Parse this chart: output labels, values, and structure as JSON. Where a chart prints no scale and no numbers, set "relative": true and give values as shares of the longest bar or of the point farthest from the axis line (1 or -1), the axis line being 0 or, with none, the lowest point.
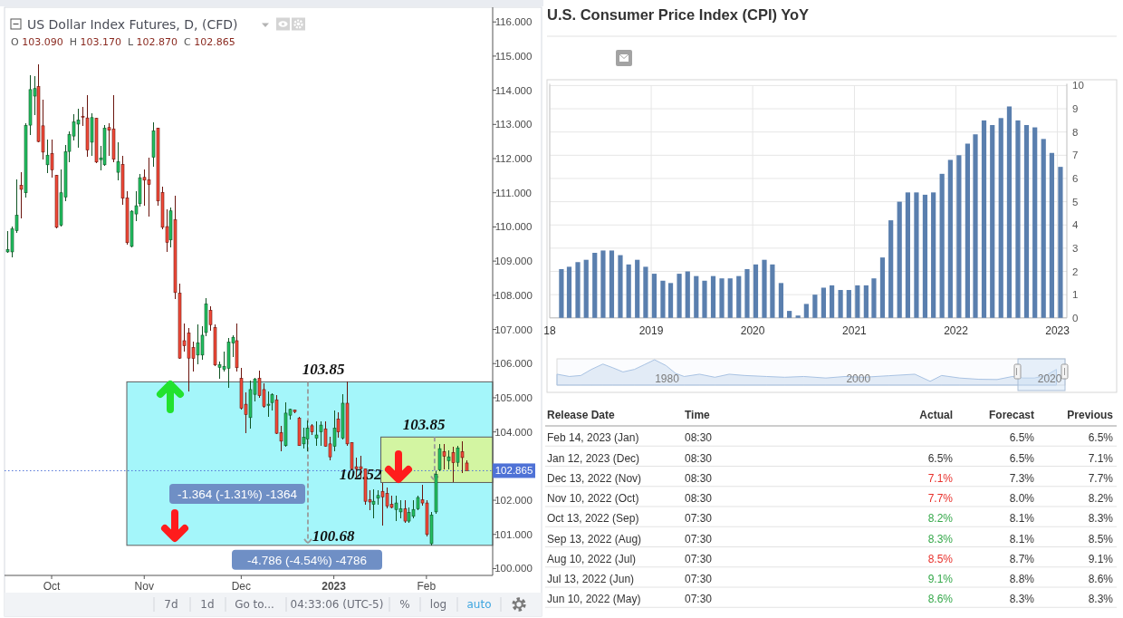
{
  "chart_data": [
    {
      "type": "candlestick",
      "title": "US Dollar Index Futures, D, (CFD)",
      "subtitle": "O 103.090 H 103.170 L 102.870 C 102.865",
      "categories": [
        null,
        null,
        null,
        null,
        null,
        null,
        null,
        null,
        null,
        null,
        "Oct",
        null,
        null,
        null,
        null,
        null,
        null,
        null,
        null,
        null,
        null,
        null,
        null,
        null,
        null,
        null,
        null,
        null,
        null,
        null,
        null,
        "Nov",
        null,
        null,
        null,
        null,
        null,
        null,
        null,
        null,
        null,
        null,
        null,
        null,
        null,
        null,
        null,
        null,
        null,
        null,
        null,
        null,
        null,
        "Dec",
        null,
        null,
        null,
        null,
        null,
        null,
        null,
        null,
        null,
        null,
        null,
        null,
        null,
        null,
        null,
        null,
        null,
        null,
        null,
        null,
        "2023",
        null,
        null,
        null,
        null,
        null,
        null,
        null,
        null,
        null,
        null,
        null,
        null,
        null,
        null,
        null,
        null,
        null,
        null,
        null,
        null,
        "Feb",
        null,
        null,
        null,
        null,
        null,
        null,
        null,
        null,
        null
      ],
      "ohlc": [
        [
          109.27,
          109.89,
          109.23,
          109.34
        ],
        [
          109.27,
          110.02,
          109.1,
          109.94
        ],
        [
          109.89,
          111.39,
          109.83,
          110.34
        ],
        [
          111.22,
          111.6,
          110.24,
          111.1
        ],
        [
          111.0,
          113.03,
          110.86,
          112.97
        ],
        [
          112.98,
          114.45,
          112.7,
          114.02
        ],
        [
          113.83,
          114.42,
          113.27,
          114.05
        ],
        [
          114.11,
          114.75,
          112.48,
          112.5
        ],
        [
          112.96,
          113.73,
          111.97,
          112.19
        ],
        [
          111.82,
          112.57,
          111.57,
          112.1
        ],
        [
          112.15,
          112.55,
          111.44,
          111.67
        ],
        [
          111.51,
          111.52,
          109.97,
          109.99
        ],
        [
          110.05,
          111.67,
          110.01,
          111.0
        ],
        [
          110.87,
          112.39,
          110.76,
          112.2
        ],
        [
          112.21,
          112.79,
          111.9,
          112.7
        ],
        [
          112.66,
          113.3,
          112.53,
          113.07
        ],
        [
          113.01,
          113.47,
          112.33,
          113.13
        ],
        [
          113.24,
          113.51,
          112.95,
          113.22
        ],
        [
          113.19,
          113.87,
          112.05,
          112.25
        ],
        [
          112.48,
          113.32,
          112.08,
          113.2
        ],
        [
          113.18,
          113.2,
          111.86,
          111.9
        ],
        [
          111.97,
          112.36,
          111.66,
          112.02
        ],
        [
          111.82,
          112.99,
          111.8,
          112.89
        ],
        [
          112.91,
          113.04,
          112.08,
          112.83
        ],
        [
          112.87,
          113.85,
          111.9,
          111.98
        ],
        [
          111.6,
          112.47,
          111.37,
          111.91
        ],
        [
          111.83,
          112.07,
          110.65,
          110.84
        ],
        [
          110.85,
          111.04,
          109.49,
          109.54
        ],
        [
          109.43,
          110.49,
          109.39,
          110.46
        ],
        [
          110.38,
          111.04,
          110.16,
          110.62
        ],
        [
          110.68,
          111.55,
          110.6,
          111.44
        ],
        [
          111.45,
          111.68,
          110.62,
          111.37
        ],
        [
          111.38,
          112.04,
          110.29,
          111.24
        ],
        [
          112.04,
          113.05,
          111.75,
          112.81
        ],
        [
          112.89,
          112.9,
          110.62,
          110.76
        ],
        [
          111.01,
          111.18,
          109.93,
          109.99
        ],
        [
          110.01,
          110.51,
          109.28,
          109.55
        ],
        [
          109.62,
          110.56,
          109.39,
          110.47
        ],
        [
          110.21,
          110.92,
          107.9,
          108.08
        ],
        [
          108.06,
          108.33,
          106.14,
          106.16
        ],
        [
          106.67,
          107.18,
          106.34,
          106.52
        ],
        [
          106.9,
          107.05,
          105.19,
          106.16
        ],
        [
          106.47,
          106.65,
          105.77,
          106.15
        ],
        [
          106.25,
          107.14,
          105.99,
          106.61
        ],
        [
          106.25,
          107.09,
          106.12,
          106.83
        ],
        [
          106.91,
          107.91,
          106.8,
          107.75
        ],
        [
          107.56,
          107.67,
          106.96,
          107.14
        ],
        [
          107.06,
          107.15,
          105.94,
          105.96
        ],
        [
          105.89,
          106.05,
          105.56,
          105.97
        ],
        [
          105.83,
          106.34,
          105.77,
          105.92
        ],
        [
          105.86,
          106.74,
          105.28,
          106.63
        ],
        [
          106.6,
          106.83,
          106.19,
          106.77
        ],
        [
          106.67,
          107.18,
          105.77,
          105.88
        ],
        [
          105.57,
          105.87,
          104.66,
          104.69
        ],
        [
          104.81,
          105.15,
          103.96,
          104.51
        ],
        [
          104.42,
          105.5,
          104.09,
          105.24
        ],
        [
          105.1,
          105.59,
          104.88,
          105.55
        ],
        [
          105.57,
          105.8,
          104.99,
          105.06
        ],
        [
          105.24,
          105.43,
          104.71,
          104.75
        ],
        [
          104.78,
          105.19,
          104.44,
          104.81
        ],
        [
          104.86,
          105.13,
          104.62,
          105.09
        ],
        [
          104.94,
          105.08,
          103.93,
          103.96
        ],
        [
          103.98,
          104.18,
          103.43,
          103.73
        ],
        [
          103.6,
          104.86,
          103.56,
          104.55
        ],
        [
          104.49,
          104.68,
          104.35,
          104.66
        ],
        [
          104.64,
          104.66,
          104.55,
          104.59
        ],
        [
          104.4,
          104.44,
          103.58,
          103.6
        ],
        [
          103.65,
          104.13,
          103.51,
          103.85
        ],
        [
          103.79,
          104.33,
          103.43,
          104.11
        ],
        [
          104.18,
          104.22,
          103.91,
          104.0
        ],
        [
          103.82,
          104.31,
          103.6,
          103.91
        ],
        [
          104.0,
          104.31,
          103.59,
          104.2
        ],
        [
          104.09,
          104.31,
          103.56,
          103.58
        ],
        [
          103.65,
          103.87,
          103.16,
          103.27
        ],
        [
          103.58,
          104.62,
          103.43,
          104.11
        ],
        [
          104.38,
          104.57,
          103.82,
          104.0
        ],
        [
          103.82,
          105.1,
          103.78,
          104.84
        ],
        [
          104.84,
          105.47,
          103.6,
          103.65
        ],
        [
          103.69,
          103.71,
          102.89,
          102.92
        ],
        [
          102.98,
          103.25,
          102.67,
          102.92
        ],
        [
          102.98,
          103.3,
          102.65,
          102.92
        ],
        [
          102.92,
          102.94,
          101.88,
          101.97
        ],
        [
          102.01,
          102.28,
          101.7,
          101.95
        ],
        [
          101.88,
          102.32,
          101.48,
          101.97
        ],
        [
          102.06,
          102.28,
          101.88,
          102.14
        ],
        [
          102.26,
          102.5,
          101.26,
          102.1
        ],
        [
          102.2,
          102.36,
          101.75,
          101.83
        ],
        [
          101.88,
          102.14,
          101.75,
          101.79
        ],
        [
          101.73,
          102.14,
          101.39,
          101.92
        ],
        [
          101.66,
          102.01,
          101.48,
          101.75
        ],
        [
          101.75,
          102.01,
          101.35,
          101.39
        ],
        [
          101.39,
          101.79,
          101.35,
          101.64
        ],
        [
          101.53,
          102.01,
          101.48,
          101.73
        ],
        [
          101.75,
          102.14,
          101.7,
          102.08
        ],
        [
          102.01,
          102.45,
          101.83,
          101.92
        ],
        [
          101.92,
          102.01,
          100.95,
          101.0
        ],
        [
          100.73,
          101.66,
          100.68,
          101.57
        ],
        [
          101.66,
          102.85,
          101.61,
          102.76
        ],
        [
          102.89,
          103.65,
          102.85,
          103.51
        ],
        [
          103.42,
          103.65,
          102.89,
          103.29
        ],
        [
          103.16,
          103.47,
          102.89,
          103.27
        ],
        [
          103.4,
          103.56,
          102.54,
          103.1
        ],
        [
          103.11,
          103.6,
          102.98,
          103.53
        ],
        [
          103.42,
          103.73,
          102.81,
          103.25
        ],
        [
          103.09,
          103.17,
          102.865,
          102.865
        ]
      ],
      "ylim": [
        99.8,
        116.43
      ],
      "yticks": [
        {
          "value": 100,
          "label": "100.000"
        },
        {
          "value": 101,
          "label": "101.000"
        },
        {
          "value": 102,
          "label": "102.000"
        },
        {
          "value": 104,
          "label": "104.000"
        },
        {
          "value": 105,
          "label": "105.000"
        },
        {
          "value": 106,
          "label": "106.000"
        },
        {
          "value": 107,
          "label": "107.000"
        },
        {
          "value": 108,
          "label": "108.000"
        },
        {
          "value": 109,
          "label": "109.000"
        },
        {
          "value": 110,
          "label": "110.000"
        },
        {
          "value": 111,
          "label": "111.000"
        },
        {
          "value": 112,
          "label": "112.000"
        },
        {
          "value": 113,
          "label": "113.000"
        },
        {
          "value": 114,
          "label": "114.000"
        },
        {
          "value": 115,
          "label": "115.000"
        },
        {
          "value": 116,
          "label": "116.000"
        }
      ],
      "ref_lines": [
        {
          "axis": "y",
          "value": 102.865,
          "label": "102.865",
          "color": "#4f72d6",
          "line_style": "dotted"
        }
      ],
      "bands": [
        {
          "axis": "y",
          "from": 100.68,
          "to": 105.466,
          "color": "#a4f6fa"
        },
        {
          "axis": "y",
          "from": 102.52,
          "to": 103.85,
          "color": "#d3f5a2"
        }
      ],
      "annotations": [
        {
          "text": "103.85",
          "y": 105.466
        },
        {
          "text": "100.68",
          "y": 100.68
        },
        {
          "text": "-4.786 (-4.54%) -4786",
          "y": 100.68
        },
        {
          "text": "103.85",
          "y": 103.85
        },
        "102.52",
        "-1.364 (-1.31%) -1364",
        "7d",
        "1d",
        "Go to...",
        "04:33:06 (UTC-5)",
        "%",
        "log",
        "auto"
      ]
    },
    {
      "type": "bar",
      "title": "U.S. Consumer Price Index (CPI) YoY",
      "x": [
        "2018-02-12",
        "2018-03-12",
        "2018-04-12",
        "2018-05-12",
        "2018-06-12",
        "2018-07-12",
        "2018-08-12",
        "2018-09-12",
        "2018-10-12",
        "2018-11-12",
        "2018-12-12",
        "2019-01-12",
        "2019-02-12",
        "2019-03-12",
        "2019-04-12",
        "2019-05-12",
        "2019-06-12",
        "2019-07-12",
        "2019-08-12",
        "2019-09-12",
        "2019-10-12",
        "2019-11-12",
        "2019-12-12",
        "2020-01-12",
        "2020-02-12",
        "2020-03-12",
        "2020-04-12",
        "2020-05-12",
        "2020-06-12",
        "2020-07-12",
        "2020-08-12",
        "2020-09-12",
        "2020-10-12",
        "2020-11-12",
        "2020-12-12",
        "2021-01-12",
        "2021-02-12",
        "2021-03-12",
        "2021-04-12",
        "2021-05-12",
        "2021-06-12",
        "2021-07-12",
        "2021-08-12",
        "2021-09-12",
        "2021-10-12",
        "2021-11-12",
        "2021-12-12",
        "2022-01-12",
        "2022-02-12",
        "2022-03-12",
        "2022-04-12",
        "2022-05-12",
        "2022-06-12",
        "2022-07-12",
        "2022-08-12",
        "2022-09-12",
        "2022-10-12",
        "2022-11-12",
        "2022-12-12",
        "2023-01-12"
      ],
      "values": [
        2.1,
        2.2,
        2.4,
        2.5,
        2.8,
        2.9,
        2.9,
        2.7,
        2.3,
        2.5,
        2.2,
        1.9,
        1.6,
        1.5,
        1.9,
        2.0,
        1.8,
        1.6,
        1.8,
        1.7,
        1.7,
        1.8,
        2.1,
        2.3,
        2.5,
        2.3,
        1.5,
        0.3,
        0.1,
        0.6,
        1.0,
        1.3,
        1.4,
        1.2,
        1.2,
        1.4,
        1.4,
        1.7,
        2.6,
        4.2,
        5.0,
        5.4,
        5.4,
        5.3,
        5.4,
        6.2,
        6.8,
        7.0,
        7.5,
        7.9,
        8.5,
        8.3,
        8.6,
        9.1,
        8.5,
        8.3,
        8.2,
        7.7,
        7.1,
        6.5
      ],
      "color": "#5a7fae",
      "xlim": [
        "2018-01-01",
        "2023-02-04"
      ],
      "xticks": [
        {
          "value": "2018",
          "label": "18"
        },
        "2019",
        "2020",
        "2021",
        "2022",
        "2023"
      ],
      "ylim": [
        0,
        10
      ],
      "yticks": [
        0,
        1,
        2,
        3,
        4,
        5,
        6,
        7,
        8,
        9,
        10
      ],
      "grid": true
    },
    {
      "type": "area",
      "relative": true,
      "x": [
        1968.5,
        1969.8,
        1971.0,
        1972.1,
        1973.3,
        1974.3,
        1975.4,
        1976.6,
        1977.6,
        1978.7,
        1979.9,
        1980.9,
        1981.8,
        1983.4,
        1985.0,
        1986.5,
        1988.1,
        1990.4,
        1992.3,
        1994.3,
        1996.6,
        1998.6,
        2000.5,
        2003.2,
        2005.9,
        2007.5,
        2008.7,
        2010.6,
        2012.6,
        2014.5,
        2016.1,
        2017.2,
        2018.4,
        2019.6,
        2020.7
      ],
      "values": [
        0.43,
        0.34,
        0.38,
        0.62,
        0.83,
        0.69,
        0.52,
        0.62,
        0.8,
        1,
        0.77,
        0.46,
        0.34,
        0.43,
        0.31,
        0.43,
        0.38,
        0.34,
        0.31,
        0.34,
        0.28,
        0.34,
        0.31,
        0.37,
        0.43,
        0.15,
        0.38,
        0.28,
        0.23,
        0.22,
        0.34,
        0.28,
        0.28,
        0.38,
        0.62
      ],
      "color": "#a9c3e3",
      "xlim": [
        1968.5,
        2021.6
      ],
      "xticks": [
        1980,
        2000,
        2020
      ],
      "tick_labels": "x"
    },
    {
      "type": "other",
      "categories": [
        "Release Date",
        "Time",
        "Actual",
        "Forecast",
        "Previous"
      ],
      "y_categories": [
        "Feb 14, 2023 (Jan)",
        "Jan 12, 2023 (Dec)",
        "Dec 13, 2022 (Nov)",
        "Nov 10, 2022 (Oct)",
        "Oct 13, 2022 (Sep)",
        "Sep 13, 2022 (Aug)",
        "Aug 10, 2022 (Jul)",
        "Jul 13, 2022 (Jun)",
        "Jun 10, 2022 (May)"
      ],
      "cell_labels": [
        [
          "08:30",
          null,
          "6.5%",
          "6.5%"
        ],
        [
          "08:30",
          "6.5%",
          "6.5%",
          "7.1%"
        ],
        [
          "08:30",
          "7.1%",
          "7.3%",
          "7.7%"
        ],
        [
          "08:30",
          "7.7%",
          "8.0%",
          "8.2%"
        ],
        [
          "07:30",
          "8.2%",
          "8.1%",
          "8.3%"
        ],
        [
          "07:30",
          "8.3%",
          "8.1%",
          "8.5%"
        ],
        [
          "07:30",
          "8.5%",
          "8.7%",
          "9.1%"
        ],
        [
          "07:30",
          "9.1%",
          "8.8%",
          "8.6%"
        ],
        [
          "07:30",
          "8.6%",
          "8.3%",
          "8.3%"
        ]
      ],
      "colors": [
        null,
        "#333333",
        "#e8312c",
        "#e8312c",
        "#35a84a",
        "#35a84a",
        "#e8312c",
        "#35a84a",
        "#35a84a"
      ]
    }
  ]
}
